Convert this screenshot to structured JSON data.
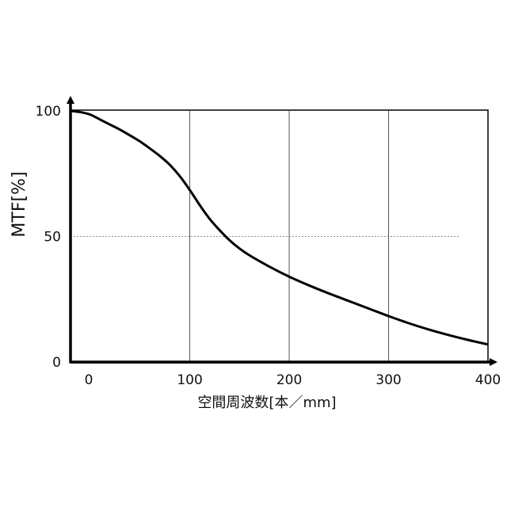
{
  "chart_data": {
    "type": "line",
    "xlabel": "空間周波数[本／mm]",
    "ylabel": "MTF[%]",
    "xlim": [
      -20,
      400
    ],
    "ylim": [
      0,
      100
    ],
    "x_ticks": [
      0,
      100,
      200,
      300,
      400
    ],
    "y_ticks": [
      0,
      50,
      100
    ],
    "x_tick_labels": [
      "0",
      "100",
      "200",
      "300",
      "400"
    ],
    "y_tick_labels": [
      "0",
      "50",
      "100"
    ],
    "reference_line": {
      "y": 50,
      "style": "dashed"
    },
    "grid": {
      "vertical_at": [
        100,
        200,
        300
      ],
      "horizontal": false
    },
    "series": [
      {
        "x": [
          -20,
          -10,
          0,
          10,
          20,
          30,
          40,
          50,
          60,
          70,
          80,
          90,
          100,
          110,
          120,
          130,
          140,
          150,
          160,
          180,
          200,
          220,
          240,
          260,
          280,
          300,
          320,
          340,
          360,
          380,
          400
        ],
        "y": [
          100,
          99.5,
          98.5,
          96.5,
          94.5,
          92.5,
          90.2,
          87.8,
          85,
          82,
          78.5,
          74,
          68.5,
          62.5,
          57,
          52.5,
          48.5,
          45.2,
          42.5,
          38,
          34,
          30.5,
          27.3,
          24.3,
          21.3,
          18.3,
          15.5,
          13,
          10.8,
          8.8,
          7
        ]
      }
    ]
  }
}
